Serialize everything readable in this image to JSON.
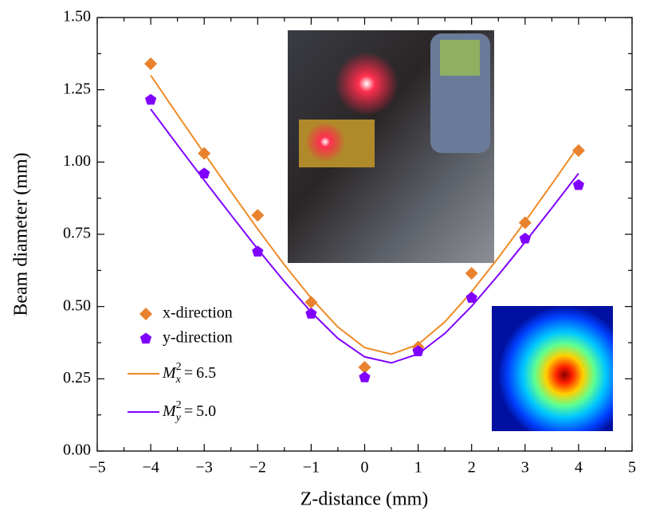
{
  "chart_data": {
    "type": "scatter",
    "x_label": "Z-distance (mm)",
    "y_label": "Beam diameter (mm)",
    "xlim": [
      -5,
      5
    ],
    "ylim": [
      0,
      1.5
    ],
    "xticks": [
      {
        "value": -5,
        "label": "−5"
      },
      {
        "value": -4,
        "label": "−4"
      },
      {
        "value": -3,
        "label": "−3"
      },
      {
        "value": -2,
        "label": "−2"
      },
      {
        "value": -1,
        "label": "−1"
      },
      0,
      1,
      2,
      3,
      4,
      5
    ],
    "yticks": [
      {
        "value": 0,
        "label": "0.00"
      },
      {
        "value": 0.25,
        "label": "0.25"
      },
      {
        "value": 0.5,
        "label": "0.50"
      },
      {
        "value": 0.75,
        "label": "0.75"
      },
      {
        "value": 1,
        "label": "1.00"
      },
      {
        "value": 1.25,
        "label": "1.25"
      },
      {
        "value": 1.5,
        "label": "1.50"
      }
    ],
    "series": [
      {
        "name": "x-direction",
        "color": "#e8822e",
        "marker": "diamond",
        "x": [
          -4,
          -3,
          -2,
          -1,
          0,
          1,
          2,
          3,
          4
        ],
        "values": [
          1.34,
          1.03,
          0.816,
          0.515,
          0.29,
          0.36,
          0.615,
          0.79,
          1.04
        ]
      },
      {
        "name": "y-direction",
        "color": "#8000ff",
        "marker": "pentagon",
        "x": [
          -4,
          -3,
          -2,
          -1,
          0,
          1,
          2,
          3,
          4
        ],
        "values": [
          1.215,
          0.96,
          0.69,
          0.475,
          0.255,
          0.345,
          0.53,
          0.735,
          0.92
        ]
      },
      {
        "label": {
          "symbol": "M",
          "sub": "x",
          "sup": "2",
          "relation": "=",
          "value": 6.5
        },
        "color": "#f08a24",
        "marker": "line",
        "x": [
          -4,
          -3.5,
          -3,
          -2.5,
          -2,
          -1.5,
          -1,
          -0.5,
          0,
          0.5,
          1,
          1.5,
          2,
          2.5,
          3,
          3.5,
          4
        ],
        "values": [
          1.3,
          1.164,
          1.03,
          0.898,
          0.768,
          0.644,
          0.529,
          0.429,
          0.358,
          0.335,
          0.369,
          0.447,
          0.551,
          0.669,
          0.794,
          0.924,
          1.056
        ]
      },
      {
        "label": {
          "symbol": "M",
          "sub": "y",
          "sup": "2",
          "relation": "=",
          "value": 5.0
        },
        "color": "#8000ff",
        "marker": "line",
        "x": [
          -4,
          -3.5,
          -3,
          -2.5,
          -2,
          -1.5,
          -1,
          -0.5,
          0,
          0.5,
          1,
          1.5,
          2,
          2.5,
          3,
          3.5,
          4
        ],
        "values": [
          1.183,
          1.059,
          0.937,
          0.817,
          0.699,
          0.586,
          0.481,
          0.39,
          0.326,
          0.305,
          0.336,
          0.407,
          0.501,
          0.609,
          0.723,
          0.841,
          0.961
        ]
      }
    ]
  }
}
